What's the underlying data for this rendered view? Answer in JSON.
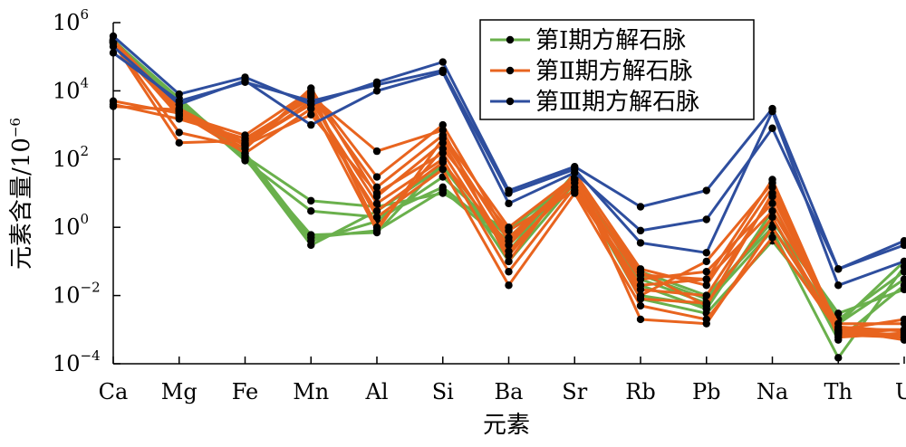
{
  "chart_data": {
    "type": "line",
    "xlabel": "元素",
    "ylabel": {
      "prefix": "元素含量/10",
      "exponent": "−6"
    },
    "yscale": "log",
    "ylim": [
      0.0001,
      1000000
    ],
    "yticks": [
      {
        "value": 0.0001,
        "base": "10",
        "exp": "−4"
      },
      {
        "value": 0.01,
        "base": "10",
        "exp": "−2"
      },
      {
        "value": 1,
        "base": "10",
        "exp": "0"
      },
      {
        "value": 100,
        "base": "10",
        "exp": "2"
      },
      {
        "value": 10000,
        "base": "10",
        "exp": "4"
      },
      {
        "value": 1000000,
        "base": "10",
        "exp": "6"
      }
    ],
    "categories": [
      "Ca",
      "Mg",
      "Fe",
      "Mn",
      "Al",
      "Si",
      "Ba",
      "Sr",
      "Rb",
      "Pb",
      "Na",
      "Th",
      "U"
    ],
    "legend_position": "top-right",
    "groups": [
      {
        "name": "第Ⅰ期方解石脉",
        "color": "#6ab04c",
        "series": [
          [
            250000,
            5000,
            150,
            0.5,
            0.8,
            12,
            0.3,
            25,
            0.05,
            0.01,
            1,
            0.0015,
            0.03
          ],
          [
            280000,
            4000,
            130,
            0.4,
            1.5,
            30,
            0.5,
            30,
            0.01,
            0.005,
            2,
            0.0005,
            0.02
          ],
          [
            300000,
            6000,
            110,
            0.3,
            3,
            60,
            0.2,
            40,
            0.02,
            0.004,
            3,
            0.002,
            0.05
          ],
          [
            260000,
            5500,
            100,
            0.6,
            0.7,
            80,
            0.1,
            20,
            0.008,
            0.003,
            0.4,
            0.0015,
            0.1
          ],
          [
            320000,
            4500,
            90,
            3,
            2,
            15,
            0.4,
            35,
            0.03,
            0.006,
            0.8,
            0.00015,
            0.07
          ],
          [
            270000,
            3500,
            120,
            6,
            4,
            10,
            0.8,
            28,
            0.04,
            0.008,
            1.5,
            0.003,
            0.015
          ]
        ]
      },
      {
        "name": "第Ⅱ期方解石脉",
        "color": "#e8641f",
        "series": [
          [
            250000,
            2000,
            500,
            10000,
            30,
            1000,
            0.5,
            25,
            0.05,
            0.005,
            10,
            0.0008,
            0.0006
          ],
          [
            300000,
            3000,
            300,
            8000,
            15,
            500,
            1,
            30,
            0.01,
            0.1,
            20,
            0.0006,
            0.0008
          ],
          [
            280000,
            2500,
            200,
            12000,
            8,
            300,
            0.2,
            20,
            0.03,
            0.05,
            5,
            0.001,
            0.001
          ],
          [
            3500,
            2800,
            250,
            5000,
            5,
            100,
            0.05,
            15,
            0.02,
            0.03,
            3,
            0.0015,
            0.0015
          ],
          [
            5000,
            2200,
            150,
            3000,
            3,
            80,
            0.3,
            35,
            0.002,
            0.0015,
            1,
            0.001,
            0.0005
          ],
          [
            4000,
            1500,
            400,
            6000,
            2,
            50,
            0.02,
            10,
            0.005,
            0.002,
            0.5,
            0.0009,
            0.0007
          ],
          [
            260000,
            300,
            350,
            7000,
            170,
            700,
            0.1,
            40,
            0.06,
            0.02,
            15,
            0.0007,
            0.0006
          ],
          [
            290000,
            600,
            220,
            9000,
            1,
            200,
            0.8,
            12,
            0.015,
            0.01,
            8,
            0.0012,
            0.0009
          ],
          [
            270000,
            1800,
            280,
            4000,
            0.8,
            400,
            0.4,
            25,
            0.008,
            0.006,
            2,
            0.0008,
            0.001
          ],
          [
            310000,
            2600,
            260,
            2000,
            10,
            150,
            0.15,
            30,
            0.04,
            0.03,
            25,
            0.001,
            0.002
          ]
        ]
      },
      {
        "name": "第Ⅲ期方解石脉",
        "color": "#2e4e9e",
        "series": [
          [
            400000,
            8000,
            25000,
            4000,
            18000,
            70000,
            12,
            60,
            4,
            12,
            3000,
            0.06,
            0.4
          ],
          [
            200000,
            4000,
            20000,
            1000,
            10000,
            35000,
            5,
            40,
            0.8,
            1.7,
            800,
            0.06,
            0.3
          ],
          [
            130000,
            5000,
            18000,
            5000,
            15000,
            40000,
            10,
            50,
            0.35,
            0.18,
            2500,
            0.02,
            0.1
          ]
        ]
      }
    ]
  }
}
